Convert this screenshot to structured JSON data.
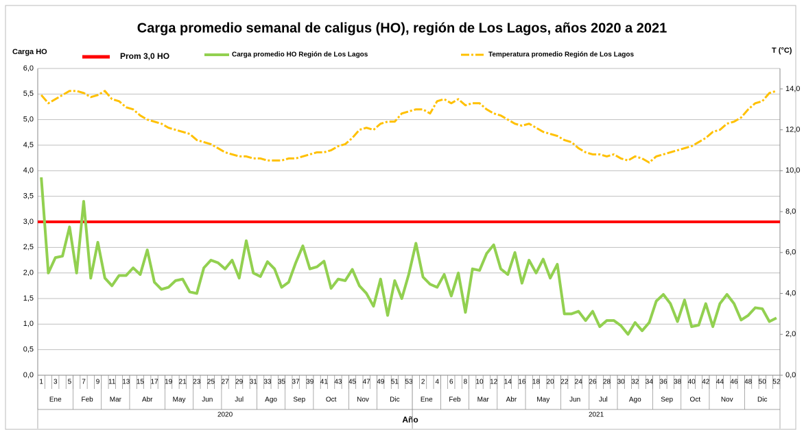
{
  "chart_data": {
    "type": "line",
    "title": "Carga promedio semanal de caligus (HO), región de Los Lagos, años 2020 a 2021",
    "y_label": "Carga HO",
    "y2_label": "T (°C)",
    "x_label": "Año",
    "categories": [
      "1",
      null,
      "3",
      null,
      "5",
      null,
      "7",
      null,
      "9",
      null,
      "11",
      null,
      "13",
      null,
      "15",
      null,
      "17",
      null,
      "19",
      null,
      "21",
      null,
      "23",
      null,
      "25",
      null,
      "27",
      null,
      "29",
      null,
      "31",
      null,
      "33",
      null,
      "35",
      null,
      "37",
      null,
      "39",
      null,
      "41",
      null,
      "43",
      null,
      "45",
      null,
      "47",
      null,
      "49",
      null,
      "51",
      null,
      "53",
      null,
      "2",
      null,
      "4",
      null,
      "6",
      null,
      "8",
      null,
      "10",
      null,
      "12",
      null,
      "14",
      null,
      "16",
      null,
      "18",
      null,
      "20",
      null,
      "22",
      null,
      "24",
      null,
      "26",
      null,
      "28",
      null,
      "30",
      null,
      "32",
      null,
      "34",
      null,
      "36",
      null,
      "38",
      null,
      "40",
      null,
      "42",
      null,
      "44",
      null,
      "46",
      null,
      "48",
      null,
      "50",
      null,
      "52"
    ],
    "x_groups": [
      {
        "label": "Ene",
        "span": 5
      },
      {
        "label": "Feb",
        "span": 4
      },
      {
        "label": "Mar",
        "span": 4
      },
      {
        "label": "Abr",
        "span": 5
      },
      {
        "label": "May",
        "span": 4
      },
      {
        "label": "Jun",
        "span": 4
      },
      {
        "label": "Jul",
        "span": 5
      },
      {
        "label": "Ago",
        "span": 4
      },
      {
        "label": "Sep",
        "span": 4
      },
      {
        "label": "Oct",
        "span": 5
      },
      {
        "label": "Nov",
        "span": 4
      },
      {
        "label": "Dic",
        "span": 5
      },
      {
        "label": "Ene",
        "span": 4
      },
      {
        "label": "Feb",
        "span": 4
      },
      {
        "label": "Mar",
        "span": 4
      },
      {
        "label": "Abr",
        "span": 4
      },
      {
        "label": "May",
        "span": 5
      },
      {
        "label": "Jun",
        "span": 4
      },
      {
        "label": "Jul",
        "span": 4
      },
      {
        "label": "Ago",
        "span": 5
      },
      {
        "label": "Sep",
        "span": 4
      },
      {
        "label": "Oct",
        "span": 4
      },
      {
        "label": "Nov",
        "span": 5
      },
      {
        "label": "Dic",
        "span": 5
      }
    ],
    "x_supergroups": [
      {
        "label": "2020",
        "span": 53
      },
      {
        "label": "2021",
        "span": 52
      }
    ],
    "reference_line": {
      "name": "Prom 3,0 HO",
      "value": 3,
      "color": "#ff0000"
    },
    "series": [
      {
        "name": "Carga promedio HO Región de Los Lagos",
        "color": "#92d050",
        "axis": "y",
        "values": [
          3.87,
          2.0,
          2.3,
          2.33,
          2.9,
          2.0,
          3.4,
          1.9,
          2.6,
          1.9,
          1.75,
          1.95,
          1.95,
          2.1,
          1.97,
          2.45,
          1.82,
          1.68,
          1.72,
          1.85,
          1.88,
          1.63,
          1.6,
          2.1,
          2.25,
          2.2,
          2.08,
          2.25,
          1.9,
          2.63,
          2.0,
          1.93,
          2.22,
          2.08,
          1.72,
          1.82,
          2.2,
          2.53,
          2.08,
          2.12,
          2.23,
          1.7,
          1.88,
          1.85,
          2.07,
          1.75,
          1.6,
          1.35,
          1.88,
          1.17,
          1.85,
          1.5,
          1.98,
          2.58,
          1.92,
          1.78,
          1.72,
          1.97,
          1.55,
          2.0,
          1.23,
          2.08,
          2.05,
          2.38,
          2.55,
          2.08,
          1.97,
          2.4,
          1.8,
          2.25,
          2.0,
          2.27,
          1.9,
          2.17,
          1.2,
          1.2,
          1.25,
          1.07,
          1.25,
          0.95,
          1.07,
          1.07,
          0.97,
          0.8,
          1.03,
          0.87,
          1.03,
          1.45,
          1.58,
          1.4,
          1.05,
          1.47,
          0.95,
          0.98,
          1.4,
          0.95,
          1.4,
          1.58,
          1.4,
          1.08,
          1.17,
          1.32,
          1.3,
          1.05,
          1.12
        ]
      },
      {
        "name": "Temperatura promedio Región de Los Lagos",
        "color": "#ffc000",
        "axis": "y2",
        "dashed": true,
        "values": [
          13.7,
          13.3,
          13.5,
          13.7,
          13.9,
          13.9,
          13.8,
          13.6,
          13.7,
          13.9,
          13.5,
          13.4,
          13.1,
          13.0,
          12.7,
          12.5,
          12.4,
          12.3,
          12.1,
          12.0,
          11.9,
          11.8,
          11.5,
          11.4,
          11.3,
          11.1,
          10.9,
          10.8,
          10.7,
          10.7,
          10.6,
          10.6,
          10.5,
          10.5,
          10.5,
          10.6,
          10.6,
          10.7,
          10.8,
          10.9,
          10.9,
          11.0,
          11.2,
          11.3,
          11.6,
          12.0,
          12.1,
          12.0,
          12.3,
          12.4,
          12.4,
          12.8,
          12.9,
          13.0,
          13.0,
          12.8,
          13.4,
          13.5,
          13.3,
          13.5,
          13.2,
          13.3,
          13.3,
          13.0,
          12.8,
          12.7,
          12.5,
          12.3,
          12.2,
          12.3,
          12.1,
          11.9,
          11.8,
          11.7,
          11.5,
          11.4,
          11.1,
          10.9,
          10.8,
          10.8,
          10.7,
          10.8,
          10.6,
          10.5,
          10.7,
          10.6,
          10.4,
          10.7,
          10.8,
          10.9,
          11.0,
          11.1,
          11.2,
          11.4,
          11.6,
          11.9,
          12.0,
          12.3,
          12.4,
          12.6,
          13.0,
          13.3,
          13.4,
          13.8,
          13.9
        ]
      }
    ],
    "ylim": [
      0,
      6
    ],
    "yticks": [
      {
        "value": 0,
        "label": "0,0"
      },
      {
        "value": 0.5,
        "label": "0,5"
      },
      {
        "value": 1,
        "label": "1,0"
      },
      {
        "value": 1.5,
        "label": "1,5"
      },
      {
        "value": 2,
        "label": "2,0"
      },
      {
        "value": 2.5,
        "label": "2,5"
      },
      {
        "value": 3,
        "label": "3,0"
      },
      {
        "value": 3.5,
        "label": "3,5"
      },
      {
        "value": 4,
        "label": "4,0"
      },
      {
        "value": 4.5,
        "label": "4,5"
      },
      {
        "value": 5,
        "label": "5,0"
      },
      {
        "value": 5.5,
        "label": "5,5"
      },
      {
        "value": 6,
        "label": "6,0"
      }
    ],
    "y2lim": [
      0,
      15
    ],
    "y2ticks": [
      {
        "value": 0,
        "label": "0,0"
      },
      {
        "value": 2,
        "label": "2,0"
      },
      {
        "value": 4,
        "label": "4,0"
      },
      {
        "value": 6,
        "label": "6,0"
      },
      {
        "value": 8,
        "label": "8,0"
      },
      {
        "value": 10,
        "label": "10,0"
      },
      {
        "value": 12,
        "label": "12,0"
      },
      {
        "value": 14,
        "label": "14,0"
      }
    ],
    "grid": true
  }
}
